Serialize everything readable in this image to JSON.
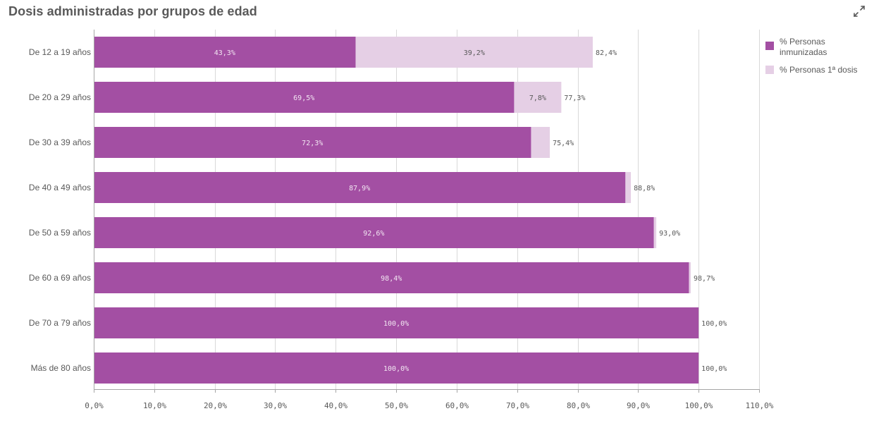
{
  "title": "Dosis administradas por grupos de edad",
  "expand_icon": "expand-icon",
  "colors": {
    "inmunizadas": "#a34fa3",
    "primera_dosis": "#e5cfe5",
    "gridline": "#d9d9d9",
    "axis": "#a6a6a6",
    "label_dark": "#595959",
    "label_light": "#f2e6f2"
  },
  "legend": [
    {
      "label": "% Personas inmunizadas",
      "color": "#a34fa3"
    },
    {
      "label": "% Personas 1ª dosis",
      "color": "#e5cfe5"
    }
  ],
  "chart_data": {
    "type": "bar",
    "orientation": "horizontal",
    "stacked": true,
    "title": "Dosis administradas por grupos de edad",
    "categories": [
      "De 12 a 19 años",
      "De 20 a 29 años",
      "De 30 a 39 años",
      "De 40 a 49 años",
      "De 50 a 59 años",
      "De 60 a 69 años",
      "De 70 a 79 años",
      "Más de 80 años"
    ],
    "series": [
      {
        "name": "% Personas inmunizadas",
        "values": [
          43.3,
          69.5,
          72.3,
          87.9,
          92.6,
          98.4,
          100.0,
          100.0
        ],
        "labels": [
          "43,3%",
          "69,5%",
          "72,3%",
          "87,9%",
          "92,6%",
          "98,4%",
          "100,0%",
          "100,0%"
        ]
      },
      {
        "name": "% Personas 1ª dosis",
        "values": [
          39.2,
          7.8,
          3.1,
          0.9,
          0.4,
          0.3,
          0.0,
          0.0
        ],
        "labels": [
          "39,2%",
          "7,8%",
          "",
          "",
          "",
          "",
          "",
          ""
        ]
      }
    ],
    "totals": [
      "82,4%",
      "77,3%",
      "75,4%",
      "88,8%",
      "93,0%",
      "98,7%",
      "100,0%",
      "100,0%"
    ],
    "xlim": [
      0,
      110
    ],
    "xticks": [
      0,
      10,
      20,
      30,
      40,
      50,
      60,
      70,
      80,
      90,
      100,
      110
    ],
    "xtick_labels": [
      "0,0%",
      "10,0%",
      "20,0%",
      "30,0%",
      "40,0%",
      "50,0%",
      "60,0%",
      "70,0%",
      "80,0%",
      "90,0%",
      "100,0%",
      "110,0%"
    ],
    "grid": true,
    "legend_position": "right"
  }
}
